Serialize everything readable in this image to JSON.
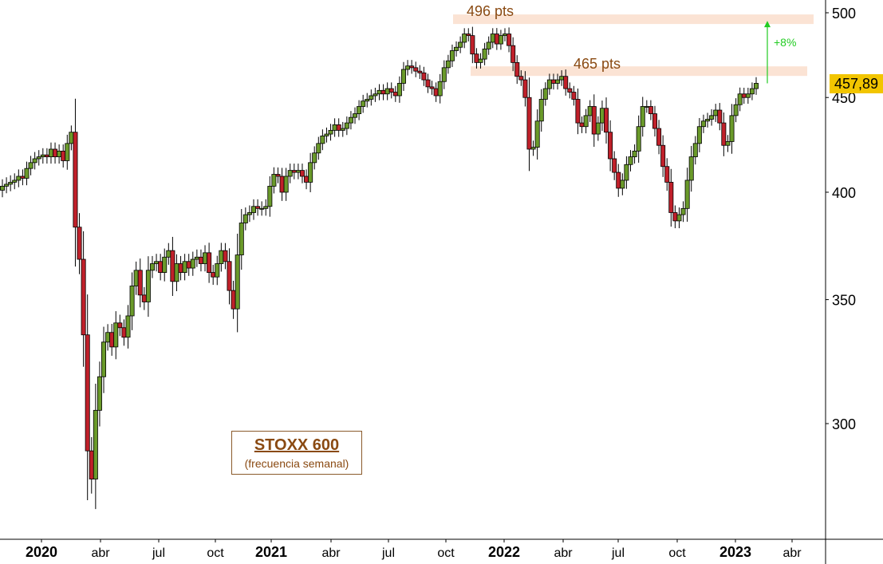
{
  "chart_data": {
    "type": "candlestick",
    "title": "STOXX 600",
    "subtitle": "(frecuencia semanal)",
    "last_price_label": "457,89",
    "ylim": [
      250,
      505
    ],
    "y_ticks": [
      {
        "value": 500,
        "label": "500"
      },
      {
        "value": 450,
        "label": "450"
      },
      {
        "value": 400,
        "label": "400"
      },
      {
        "value": 350,
        "label": "350"
      },
      {
        "value": 300,
        "label": "300"
      }
    ],
    "x_ticks": [
      {
        "label": "2020",
        "bold": true
      },
      {
        "label": "abr",
        "bold": false
      },
      {
        "label": "jul",
        "bold": false
      },
      {
        "label": "oct",
        "bold": false
      },
      {
        "label": "2021",
        "bold": true
      },
      {
        "label": "abr",
        "bold": false
      },
      {
        "label": "jul",
        "bold": false
      },
      {
        "label": "oct",
        "bold": false
      },
      {
        "label": "2022",
        "bold": true
      },
      {
        "label": "abr",
        "bold": false
      },
      {
        "label": "jul",
        "bold": false
      },
      {
        "label": "oct",
        "bold": false
      },
      {
        "label": "2023",
        "bold": true
      },
      {
        "label": "abr",
        "bold": false
      }
    ],
    "resistance_levels": [
      {
        "label": "496 pts",
        "value": 496
      },
      {
        "label": "465 pts",
        "value": 465
      }
    ],
    "annotation": {
      "label": "+8%",
      "from": 458,
      "to": 496
    },
    "colors": {
      "up": "#6a9a2a",
      "down": "#c0202a",
      "band": "#fbe3d4",
      "arrow": "#22cc22",
      "label": "#8a4a12"
    },
    "series_weekly_close": [
      403,
      404,
      405,
      406,
      408,
      407,
      412,
      415,
      417,
      418,
      419,
      418,
      422,
      418,
      421,
      416,
      425,
      431,
      383,
      368,
      335,
      290,
      280,
      305,
      318,
      332,
      336,
      330,
      340,
      338,
      334,
      343,
      356,
      363,
      352,
      349,
      363,
      366,
      367,
      362,
      369,
      372,
      358,
      366,
      362,
      367,
      364,
      368,
      369,
      366,
      371,
      362,
      360,
      366,
      372,
      367,
      354,
      346,
      370,
      385,
      389,
      390,
      393,
      392,
      392,
      393,
      403,
      409,
      408,
      400,
      408,
      411,
      410,
      411,
      408,
      405,
      415,
      420,
      425,
      429,
      430,
      432,
      435,
      432,
      433,
      436,
      439,
      441,
      445,
      448,
      449,
      451,
      452,
      454,
      452,
      455,
      453,
      451,
      458,
      466,
      468,
      467,
      465,
      464,
      460,
      456,
      455,
      451,
      459,
      467,
      471,
      477,
      479,
      482,
      487,
      486,
      475,
      470,
      472,
      478,
      482,
      487,
      481,
      486,
      487,
      480,
      470,
      462,
      460,
      450,
      422,
      423,
      437,
      449,
      455,
      460,
      458,
      460,
      462,
      455,
      453,
      449,
      436,
      434,
      440,
      445,
      430,
      436,
      444,
      431,
      417,
      410,
      402,
      406,
      414,
      418,
      421,
      434,
      445,
      445,
      441,
      433,
      424,
      413,
      405,
      390,
      386,
      389,
      392,
      406,
      418,
      425,
      434,
      437,
      438,
      440,
      443,
      436,
      424,
      426,
      440,
      446,
      452,
      450,
      452,
      455,
      458
    ]
  },
  "ui": {
    "legend_title": "STOXX 600",
    "legend_subtitle": "(frecuencia semanal)",
    "level_high_label": "496 pts",
    "level_low_label": "465 pts",
    "pct_label": "+8%",
    "last_price": "457,89"
  }
}
